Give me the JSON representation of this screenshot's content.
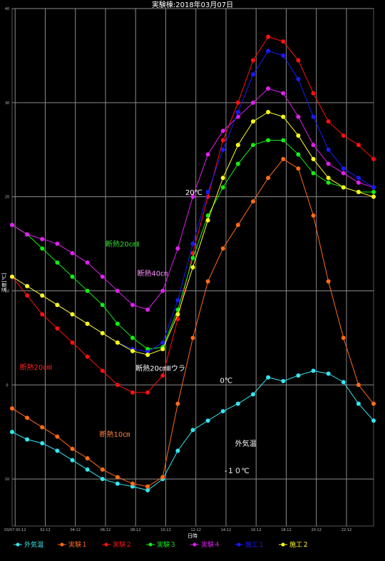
{
  "chart_data": {
    "type": "line",
    "title": "実験棟:2018年03月07日",
    "xlabel": "日時",
    "ylabel": "温度[℃]",
    "ylim": [
      -15,
      40
    ],
    "y_ticks": [
      -10,
      0,
      10,
      20,
      30,
      40
    ],
    "xlim": [
      0,
      24
    ],
    "x_ticks": [
      "03/07 00:12",
      "02:12",
      "04:12",
      "06:12",
      "08:12",
      "10:12",
      "12:12",
      "14:12",
      "16:12",
      "18:12",
      "20:12",
      "22:12"
    ],
    "grid": true,
    "legend_position": "bottom",
    "colors": {
      "background": "#000000",
      "grid": "#8a8a8a",
      "outside": "#35e6f0",
      "exp1": "#ff6a1a",
      "exp2": "#ff1010",
      "exp3": "#12ee12",
      "exp4": "#e020f0",
      "build1": "#1a1aff",
      "build2": "#ffff20"
    },
    "series": [
      {
        "name": "外気温",
        "color_key": "outside",
        "x": [
          0,
          1,
          2,
          3,
          4,
          5,
          6,
          7,
          8,
          9,
          10,
          11,
          12,
          13,
          14,
          15,
          16,
          17,
          18,
          19,
          20,
          21,
          22,
          23,
          24
        ],
        "values": [
          -5.0,
          -5.8,
          -6.2,
          -7.0,
          -8.0,
          -9.0,
          -10.0,
          -10.5,
          -10.8,
          -11.2,
          -10.0,
          -7.0,
          -4.8,
          -3.8,
          -2.8,
          -2.0,
          -1.0,
          0.8,
          0.4,
          1.0,
          1.5,
          1.2,
          0.3,
          -2.0,
          -3.8
        ]
      },
      {
        "name": "実験１",
        "color_key": "exp1",
        "x": [
          0,
          1,
          2,
          3,
          4,
          5,
          6,
          7,
          8,
          9,
          10,
          11,
          12,
          13,
          14,
          15,
          16,
          17,
          18,
          19,
          20,
          21,
          22,
          23,
          24
        ],
        "values": [
          -2.5,
          -3.5,
          -4.5,
          -5.5,
          -6.8,
          -7.8,
          -9.0,
          -9.8,
          -10.5,
          -10.8,
          -9.8,
          -2.0,
          5.0,
          11.0,
          14.5,
          17.0,
          19.5,
          22.0,
          24.0,
          23.0,
          18.0,
          11.0,
          5.0,
          0.0,
          -2.0
        ]
      },
      {
        "name": "実験２",
        "color_key": "exp2",
        "x": [
          0,
          1,
          2,
          3,
          4,
          5,
          6,
          7,
          8,
          9,
          10,
          11,
          12,
          13,
          14,
          15,
          16,
          17,
          18,
          19,
          20,
          21,
          22,
          23,
          24
        ],
        "values": [
          11.5,
          9.5,
          7.5,
          6.0,
          4.5,
          3.0,
          1.5,
          0.0,
          -0.8,
          -0.8,
          1.0,
          7.0,
          14.0,
          20.0,
          26.0,
          30.0,
          34.5,
          37.0,
          36.5,
          34.5,
          31.0,
          28.0,
          26.5,
          25.5,
          24.0
        ]
      },
      {
        "name": "実験３",
        "color_key": "exp3",
        "x": [
          0,
          1,
          2,
          3,
          4,
          5,
          6,
          7,
          8,
          9,
          10,
          11,
          12,
          13,
          14,
          15,
          16,
          17,
          18,
          19,
          20,
          21,
          22,
          23,
          24
        ],
        "values": [
          17.0,
          16.0,
          14.5,
          13.0,
          11.5,
          10.0,
          8.5,
          6.5,
          5.0,
          3.8,
          4.0,
          8.0,
          13.5,
          18.0,
          21.0,
          23.5,
          25.5,
          26.0,
          26.0,
          24.5,
          22.5,
          21.5,
          21.0,
          20.5,
          20.5
        ]
      },
      {
        "name": "実験４",
        "color_key": "exp4",
        "x": [
          0,
          1,
          2,
          3,
          4,
          5,
          6,
          7,
          8,
          9,
          10,
          11,
          12,
          13,
          14,
          15,
          16,
          17,
          18,
          19,
          20,
          21,
          22,
          23,
          24
        ],
        "values": [
          17.0,
          16.0,
          15.5,
          15.0,
          14.0,
          13.0,
          11.5,
          10.0,
          8.5,
          8.0,
          10.0,
          14.5,
          20.0,
          24.5,
          27.0,
          28.5,
          30.0,
          31.5,
          31.0,
          28.5,
          25.5,
          23.5,
          22.5,
          21.5,
          21.0
        ]
      },
      {
        "name": "施工１",
        "color_key": "build1",
        "x": [
          0,
          1,
          2,
          3,
          4,
          5,
          6,
          7,
          8,
          9,
          10,
          11,
          12,
          13,
          14,
          15,
          16,
          17,
          18,
          19,
          20,
          21,
          22,
          23,
          24
        ],
        "values": [
          11.5,
          10.5,
          9.5,
          8.5,
          7.5,
          6.5,
          5.5,
          4.5,
          3.8,
          3.5,
          4.5,
          9.0,
          15.0,
          20.5,
          25.0,
          29.0,
          33.0,
          35.5,
          35.0,
          32.5,
          28.5,
          25.0,
          23.0,
          22.0,
          21.0
        ]
      },
      {
        "name": "施工２",
        "color_key": "build2",
        "x": [
          0,
          1,
          2,
          3,
          4,
          5,
          6,
          7,
          8,
          9,
          10,
          11,
          12,
          13,
          14,
          15,
          16,
          17,
          18,
          19,
          20,
          21,
          22,
          23,
          24
        ],
        "values": [
          11.5,
          10.5,
          9.5,
          8.5,
          7.5,
          6.5,
          5.5,
          4.5,
          3.6,
          3.2,
          3.8,
          7.5,
          12.5,
          17.5,
          22.0,
          25.5,
          28.0,
          29.0,
          28.5,
          26.5,
          24.0,
          22.0,
          21.0,
          20.5,
          20.0
        ]
      }
    ],
    "annotations": [
      {
        "text": "20℃",
        "x": 11.5,
        "y": 20.2,
        "color": "#ffffff"
      },
      {
        "text": "0℃",
        "x": 13.8,
        "y": 0.2,
        "color": "#ffffff"
      },
      {
        "text": "-１０℃",
        "x": 14.1,
        "y": -9.4,
        "color": "#ffffff"
      },
      {
        "text": "外気温",
        "x": 14.8,
        "y": -6.5,
        "color": "#ffffff"
      },
      {
        "text": "断熱20㎝Ⅱ",
        "x": 6.2,
        "y": 14.7,
        "color": "#33dd33"
      },
      {
        "text": "断熱40㎝",
        "x": 8.3,
        "y": 11.6,
        "color": "#ff90ff"
      },
      {
        "text": "断熱20㎝Ⅰ",
        "x": 0.5,
        "y": 1.6,
        "color": "#ff2020"
      },
      {
        "text": "断熱20㎝Ⅲウラ",
        "x": 8.2,
        "y": 1.5,
        "color": "#ffffff"
      },
      {
        "text": "断熱10㎝",
        "x": 5.8,
        "y": -5.5,
        "color": "#ff8040"
      }
    ]
  }
}
